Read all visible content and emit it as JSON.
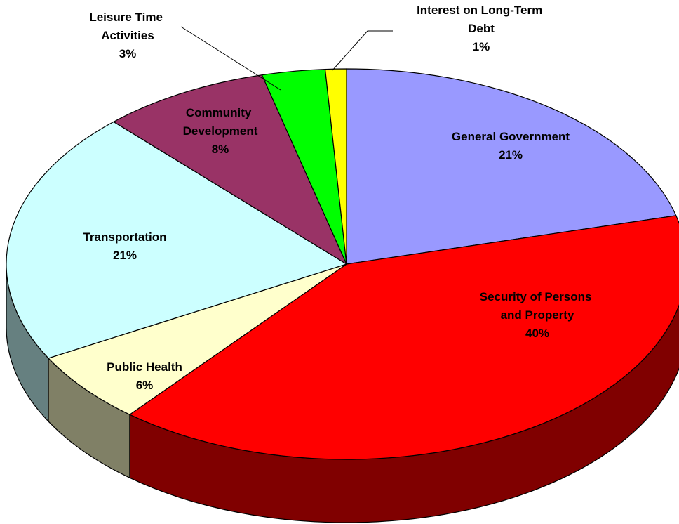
{
  "chart_data": {
    "type": "pie3d",
    "categories": [
      "General Government",
      "Security of Persons and Property",
      "Public Health",
      "Transportation",
      "Community Development",
      "Leisure Time Activities",
      "Interest on Long-Term Debt"
    ],
    "values": [
      21,
      40,
      6,
      21,
      8,
      3,
      1
    ],
    "value_labels": [
      "21%",
      "40%",
      "6%",
      "21%",
      "8%",
      "3%",
      "1%"
    ],
    "colors": [
      "#9999ff",
      "#ff0000",
      "#ffffcc",
      "#ccffff",
      "#993366",
      "#00ff00",
      "#ffff00"
    ]
  }
}
